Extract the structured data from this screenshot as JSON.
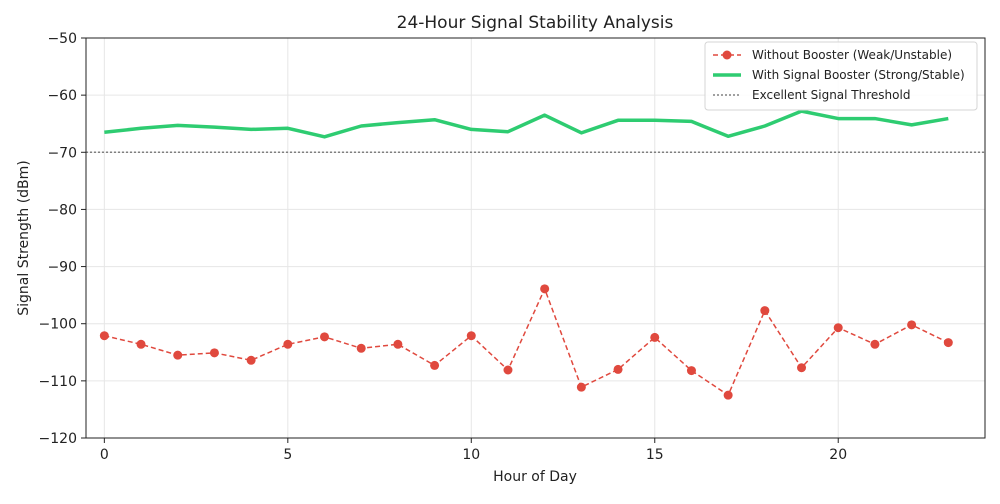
{
  "chart_data": {
    "type": "line",
    "title": "24-Hour Signal Stability Analysis",
    "xlabel": "Hour of Day",
    "ylabel": "Signal Strength (dBm)",
    "xlim": [
      -0.5,
      24
    ],
    "ylim": [
      -120,
      -50
    ],
    "xticks": [
      0,
      5,
      10,
      15,
      20
    ],
    "yticks": [
      -50,
      -60,
      -70,
      -80,
      -90,
      -100,
      -110,
      -120
    ],
    "grid": true,
    "legend_position": "top-right",
    "x": [
      0,
      1,
      2,
      3,
      4,
      5,
      6,
      7,
      8,
      9,
      10,
      11,
      12,
      13,
      14,
      15,
      16,
      17,
      18,
      19,
      20,
      21,
      22,
      23
    ],
    "series": [
      {
        "name": "Without Booster (Weak/Unstable)",
        "style": "dashed-marker",
        "color": "#e0493e",
        "values": [
          -102.1,
          -103.6,
          -105.5,
          -105.1,
          -106.4,
          -103.6,
          -102.3,
          -104.3,
          -103.6,
          -107.3,
          -102.1,
          -108.1,
          -93.9,
          -111.1,
          -108.0,
          -102.4,
          -108.2,
          -112.5,
          -97.7,
          -107.7,
          -100.7,
          -103.6,
          -100.2,
          -103.3
        ]
      },
      {
        "name": "With Signal Booster (Strong/Stable)",
        "style": "solid",
        "color": "#2ecc71",
        "values": [
          -66.5,
          -65.8,
          -65.3,
          -65.6,
          -66.0,
          -65.8,
          -67.3,
          -65.4,
          -64.8,
          -64.3,
          -66.0,
          -66.4,
          -63.5,
          -66.6,
          -64.4,
          -64.4,
          -64.6,
          -67.2,
          -65.4,
          -62.8,
          -64.1,
          -64.1,
          -65.2,
          -64.1
        ]
      },
      {
        "name": "Excellent Signal Threshold",
        "style": "dotted",
        "color": "#808080",
        "value": -70
      }
    ]
  }
}
